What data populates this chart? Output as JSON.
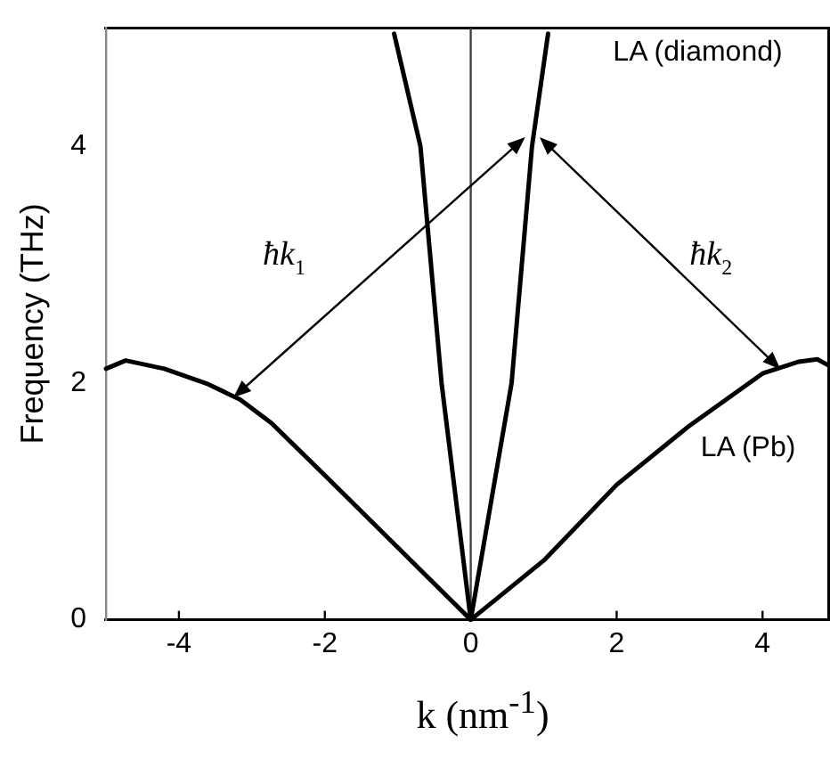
{
  "chart_data": {
    "type": "line",
    "xlabel": "k (nm$^{-1}$)",
    "ylabel": "Frequency (THz)",
    "series": [
      {
        "name": "LA (diamond)",
        "color": "#000000",
        "x": [
          -1.05,
          -0.69,
          -0.4,
          0,
          0.56,
          0.84,
          1.06
        ],
        "values": [
          4.95,
          4,
          2,
          0,
          2,
          4,
          4.95
        ]
      },
      {
        "name": "LA (Pb)",
        "color": "#000000",
        "x": [
          -5,
          -4.73,
          -4.2,
          -3.6,
          -3.16,
          -2.73,
          -2,
          -1,
          0,
          1,
          2,
          3,
          3.5,
          4,
          4.5,
          4.75,
          4.9
        ],
        "values": [
          2.12,
          2.19,
          2.12,
          1.99,
          1.86,
          1.66,
          1.22,
          0.61,
          0,
          0.5,
          1.14,
          1.64,
          1.86,
          2.08,
          2.18,
          2.2,
          2.15
        ]
      }
    ],
    "annotations": [
      "ħk$_{1}$",
      "ħk$_{2}$"
    ],
    "ref_lines": [
      {
        "axis": "x",
        "value": 0,
        "color": "#444444"
      }
    ],
    "xlim": [
      -5,
      4.9
    ],
    "xticks": [
      -4,
      -2,
      0,
      2,
      4
    ],
    "ylim": [
      0,
      5
    ],
    "yticks": [
      0,
      2,
      4
    ],
    "grid": false,
    "legend": false,
    "marker": "none",
    "line_style": "solid"
  }
}
